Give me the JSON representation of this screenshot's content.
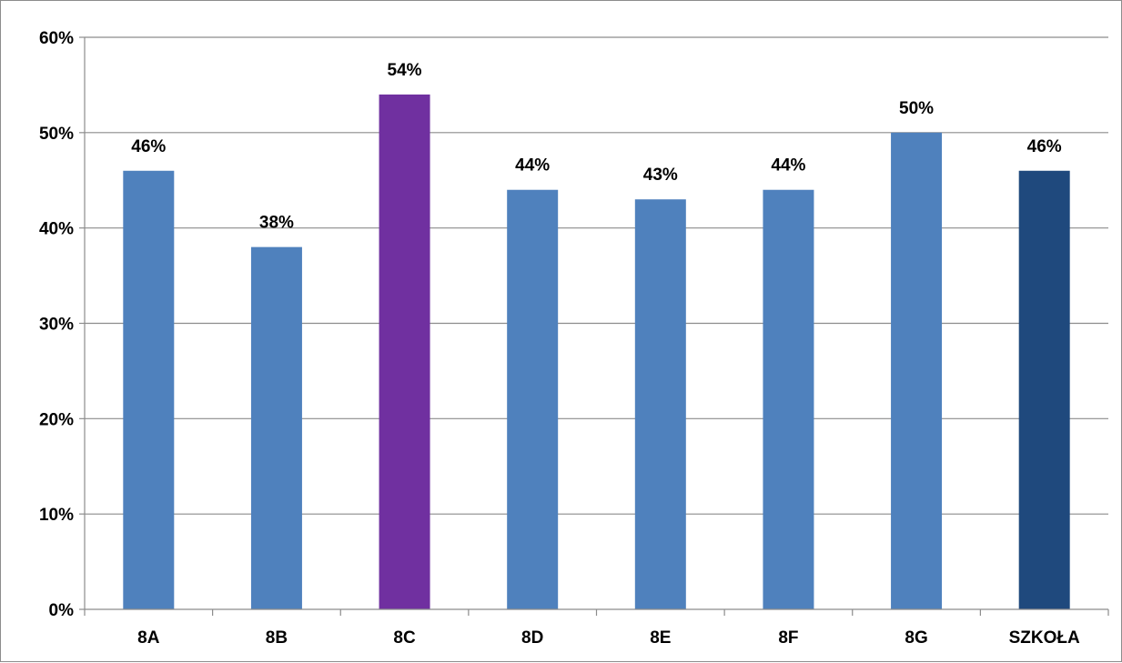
{
  "chart_data": {
    "type": "bar",
    "title": "",
    "xlabel": "",
    "ylabel": "",
    "categories": [
      "8A",
      "8B",
      "8C",
      "8D",
      "8E",
      "8F",
      "8G",
      "SZKOŁA"
    ],
    "values": [
      46,
      38,
      54,
      44,
      43,
      44,
      50,
      46
    ],
    "value_labels": [
      "46%",
      "38%",
      "54%",
      "44%",
      "43%",
      "44%",
      "50%",
      "46%"
    ],
    "bar_colors": [
      "#4f81bd",
      "#4f81bd",
      "#7030a0",
      "#4f81bd",
      "#4f81bd",
      "#4f81bd",
      "#4f81bd",
      "#1f497d"
    ],
    "ylim": [
      0,
      60
    ],
    "yticks": [
      0,
      10,
      20,
      30,
      40,
      50,
      60
    ],
    "ytick_labels": [
      "0%",
      "10%",
      "20%",
      "30%",
      "40%",
      "50%",
      "60%"
    ],
    "grid": true,
    "legend": "none",
    "gridline_color": "#8c8c8c",
    "axis_color": "#8c8c8c"
  }
}
